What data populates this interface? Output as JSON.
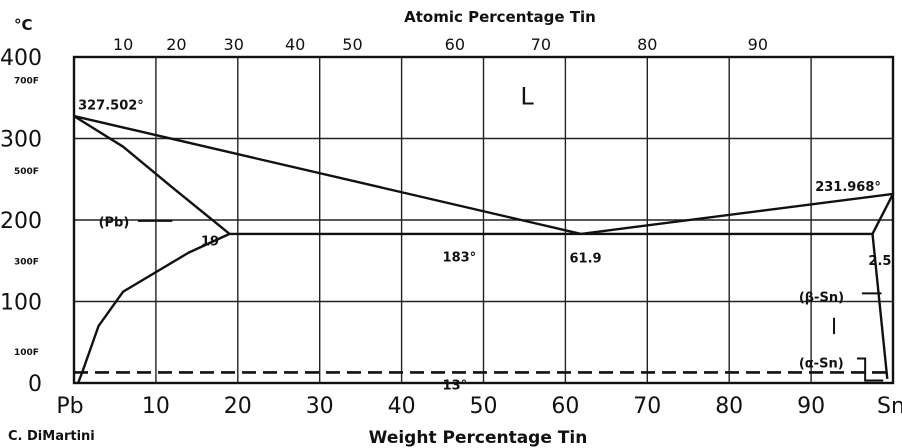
{
  "chart_data": {
    "type": "line",
    "title": "",
    "ylabel": "°C",
    "xlabel": "Weight Percentage Tin",
    "top_axis_label": "Atomic Percentage Tin",
    "credit": "C. DiMartini",
    "xlim": [
      0,
      100
    ],
    "ylim": [
      0,
      400
    ],
    "x_tick_labels": [
      "Pb",
      "10",
      "20",
      "30",
      "40",
      "50",
      "60",
      "70",
      "80",
      "90",
      "Sn"
    ],
    "x_tick_values": [
      0,
      10,
      20,
      30,
      40,
      50,
      60,
      70,
      80,
      90,
      100
    ],
    "y_tick_labels": [
      "0",
      "100",
      "200",
      "300",
      "400"
    ],
    "y_tick_values": [
      0,
      100,
      200,
      300,
      400
    ],
    "y_fahrenheit_labels": [
      "100F",
      "300F",
      "500F",
      "700F"
    ],
    "y_fahrenheit_values_c": [
      37.8,
      148.9,
      260,
      371.1
    ],
    "top_tick_labels": [
      "10",
      "20",
      "30",
      "40",
      "50",
      "60",
      "70",
      "80",
      "90"
    ],
    "top_tick_wt_positions": [
      6.0,
      12.5,
      19.5,
      27.0,
      34.0,
      46.5,
      57.0,
      70.0,
      83.5
    ],
    "grid": true,
    "series": [
      {
        "key": "liquidus_pb",
        "values_xy": [
          [
            0,
            327.5
          ],
          [
            61.9,
            183
          ]
        ]
      },
      {
        "key": "liquidus_sn",
        "values_xy": [
          [
            61.9,
            183
          ],
          [
            100,
            232
          ]
        ]
      },
      {
        "key": "solidus_pb",
        "values_xy": [
          [
            0,
            327.5
          ],
          [
            6,
            290
          ],
          [
            12,
            240
          ],
          [
            19,
            183
          ]
        ]
      },
      {
        "key": "eutectic",
        "values_xy": [
          [
            19,
            183
          ],
          [
            97.5,
            183
          ]
        ]
      },
      {
        "key": "solvus_pb",
        "values_xy": [
          [
            19,
            183
          ],
          [
            14,
            160
          ],
          [
            6,
            112
          ],
          [
            3,
            70
          ],
          [
            1,
            13
          ],
          [
            0.5,
            0
          ]
        ]
      },
      {
        "key": "solvus_sn",
        "values_xy": [
          [
            97.5,
            183
          ],
          [
            99.3,
            5
          ]
        ]
      },
      {
        "key": "solidus_sn",
        "values_xy": [
          [
            97.5,
            183
          ],
          [
            100,
            232
          ]
        ]
      },
      {
        "key": "transformation_13",
        "style": "dashed",
        "values_xy": [
          [
            0,
            13
          ],
          [
            100,
            13
          ]
        ]
      }
    ],
    "annotations": [
      {
        "text": "327.502°",
        "x": 0.5,
        "y": 342
      },
      {
        "text": "L",
        "x": 54.5,
        "y": 348
      },
      {
        "text": "231.968°",
        "x": 90.5,
        "y": 242
      },
      {
        "text": "(Pb)",
        "x": 3,
        "y": 198
      },
      {
        "text": "19",
        "x": 15.5,
        "y": 175
      },
      {
        "text": "183°",
        "x": 45,
        "y": 155
      },
      {
        "text": "61.9",
        "x": 60.5,
        "y": 154
      },
      {
        "text": "2.5",
        "x": 97,
        "y": 151
      },
      {
        "text": "(β-Sn)",
        "x": 88.5,
        "y": 106
      },
      {
        "text": "13°",
        "x": 45,
        "y": -2
      },
      {
        "text": "(α-Sn)",
        "x": 88.5,
        "y": 25
      }
    ]
  }
}
